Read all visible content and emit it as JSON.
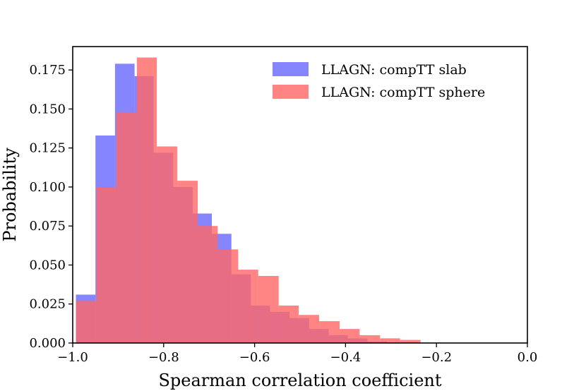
{
  "chart_data": {
    "type": "bar",
    "subtype": "overlapping histogram",
    "title": "",
    "xlabel": "Spearman correlation coefficient",
    "ylabel": "Probability",
    "xlim": [
      -1.0,
      0.0
    ],
    "ylim": [
      0.0,
      0.19
    ],
    "grid": false,
    "legend_position": "top-right",
    "x_ticks": [
      -1.0,
      -0.8,
      -0.6,
      -0.4,
      -0.2,
      0.0
    ],
    "x_tick_labels": [
      "−1.0",
      "−0.8",
      "−0.6",
      "−0.4",
      "−0.2",
      "0.0"
    ],
    "y_ticks": [
      0.0,
      0.025,
      0.05,
      0.075,
      0.1,
      0.125,
      0.15,
      0.175
    ],
    "y_tick_labels": [
      "0.000",
      "0.025",
      "0.050",
      "0.075",
      "0.100",
      "0.125",
      "0.150",
      "0.175"
    ],
    "series": [
      {
        "name": "LLAGN: compTT slab",
        "color": "#6666ff",
        "bins": [
          {
            "x0": -0.993,
            "x1": -0.95,
            "y": 0.031
          },
          {
            "x0": -0.95,
            "x1": -0.907,
            "y": 0.133
          },
          {
            "x0": -0.907,
            "x1": -0.864,
            "y": 0.179
          },
          {
            "x0": -0.864,
            "x1": -0.822,
            "y": 0.171
          },
          {
            "x0": -0.822,
            "x1": -0.779,
            "y": 0.122
          },
          {
            "x0": -0.779,
            "x1": -0.736,
            "y": 0.1
          },
          {
            "x0": -0.736,
            "x1": -0.694,
            "y": 0.083
          },
          {
            "x0": -0.694,
            "x1": -0.651,
            "y": 0.07
          },
          {
            "x0": -0.651,
            "x1": -0.608,
            "y": 0.044
          },
          {
            "x0": -0.608,
            "x1": -0.566,
            "y": 0.024
          },
          {
            "x0": -0.566,
            "x1": -0.523,
            "y": 0.02
          },
          {
            "x0": -0.523,
            "x1": -0.48,
            "y": 0.016
          },
          {
            "x0": -0.48,
            "x1": -0.437,
            "y": 0.009
          },
          {
            "x0": -0.437,
            "x1": -0.395,
            "y": 0.005
          },
          {
            "x0": -0.395,
            "x1": -0.352,
            "y": 0.003
          },
          {
            "x0": -0.352,
            "x1": -0.309,
            "y": 0.001
          }
        ]
      },
      {
        "name": "LLAGN: compTT sphere",
        "color": "#ff6666",
        "bins": [
          {
            "x0": -0.993,
            "x1": -0.948,
            "y": 0.027
          },
          {
            "x0": -0.948,
            "x1": -0.904,
            "y": 0.1
          },
          {
            "x0": -0.904,
            "x1": -0.859,
            "y": 0.148
          },
          {
            "x0": -0.859,
            "x1": -0.815,
            "y": 0.183
          },
          {
            "x0": -0.815,
            "x1": -0.77,
            "y": 0.126
          },
          {
            "x0": -0.77,
            "x1": -0.725,
            "y": 0.104
          },
          {
            "x0": -0.725,
            "x1": -0.681,
            "y": 0.075
          },
          {
            "x0": -0.681,
            "x1": -0.636,
            "y": 0.06
          },
          {
            "x0": -0.636,
            "x1": -0.592,
            "y": 0.047
          },
          {
            "x0": -0.592,
            "x1": -0.547,
            "y": 0.043
          },
          {
            "x0": -0.547,
            "x1": -0.503,
            "y": 0.024
          },
          {
            "x0": -0.503,
            "x1": -0.458,
            "y": 0.018
          },
          {
            "x0": -0.458,
            "x1": -0.413,
            "y": 0.014
          },
          {
            "x0": -0.413,
            "x1": -0.369,
            "y": 0.009
          },
          {
            "x0": -0.369,
            "x1": -0.324,
            "y": 0.005
          },
          {
            "x0": -0.324,
            "x1": -0.28,
            "y": 0.003
          },
          {
            "x0": -0.28,
            "x1": -0.235,
            "y": 0.002
          }
        ]
      }
    ]
  }
}
